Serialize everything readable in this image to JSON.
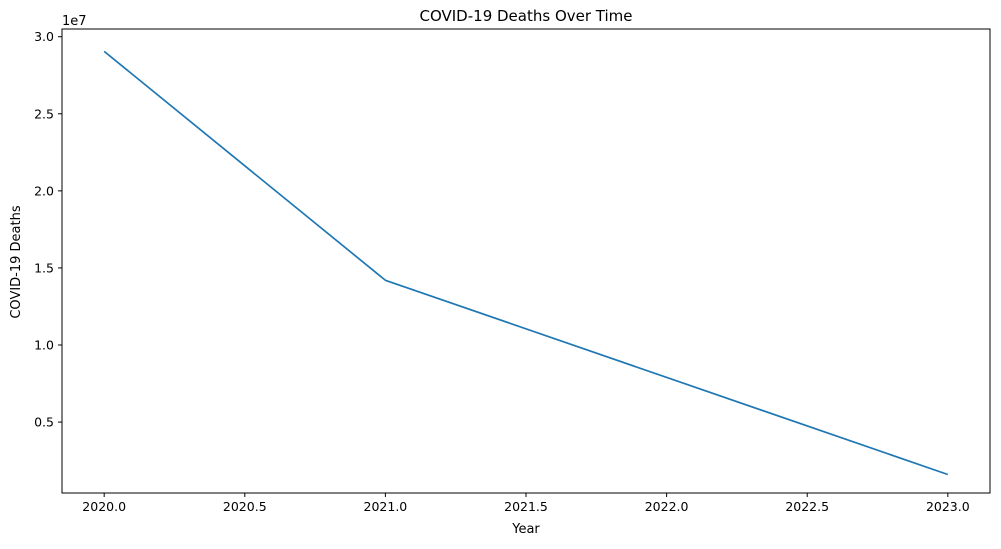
{
  "chart_data": {
    "type": "line",
    "title": "COVID-19 Deaths Over Time",
    "xlabel": "Year",
    "ylabel": "COVID-19 Deaths",
    "y_offset_label": "1e7",
    "xlim": [
      2019.85,
      2023.15
    ],
    "ylim": [
      400000,
      30500000
    ],
    "x_ticks": [
      2020.0,
      2020.5,
      2021.0,
      2021.5,
      2022.0,
      2022.5,
      2023.0
    ],
    "x_tick_labels": [
      "2020.0",
      "2020.5",
      "2021.0",
      "2021.5",
      "2022.0",
      "2022.5",
      "2023.0"
    ],
    "y_ticks": [
      5000000,
      10000000,
      15000000,
      20000000,
      25000000,
      30000000
    ],
    "y_tick_labels": [
      "0.5",
      "1.0",
      "1.5",
      "2.0",
      "2.5",
      "3.0"
    ],
    "grid": false,
    "series": [
      {
        "name": "COVID-19 Deaths",
        "color": "#1f77b4",
        "x": [
          2020,
          2021,
          2023
        ],
        "y": [
          29050000,
          14200000,
          1600000
        ]
      }
    ]
  }
}
